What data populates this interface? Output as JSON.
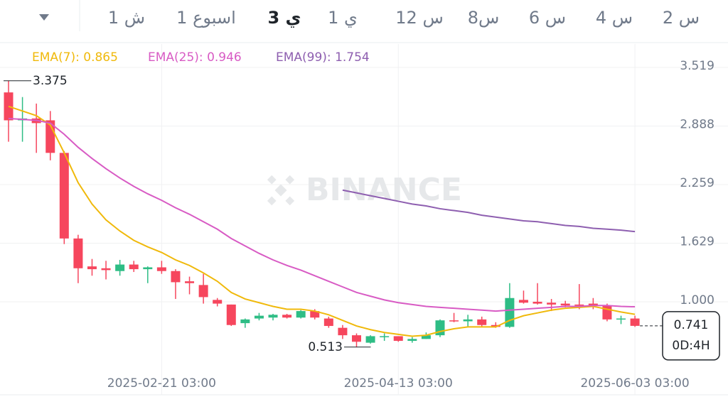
{
  "tabs": [
    "2 س",
    "4 س",
    "6 س",
    "8س",
    "12 س",
    "1 ي",
    "3 ي",
    "1 اسبوع",
    "1 ش"
  ],
  "selected_tab": 6,
  "chart_data": {
    "type": "candlestick",
    "watermark": "BINANCE",
    "categories": [
      null,
      null,
      null,
      null,
      null,
      null,
      null,
      null,
      null,
      null,
      null,
      "2025-02-21 03:00",
      null,
      null,
      null,
      null,
      null,
      null,
      null,
      null,
      null,
      null,
      null,
      null,
      null,
      null,
      null,
      null,
      "2025-04-13 03:00",
      null,
      null,
      null,
      null,
      null,
      null,
      null,
      null,
      null,
      null,
      null,
      null,
      null,
      null,
      null,
      null,
      "2025-06-03 03:00"
    ],
    "open": [
      3.25,
      2.95,
      2.97,
      2.95,
      2.6,
      1.68,
      1.38,
      1.36,
      1.33,
      1.4,
      1.35,
      1.37,
      1.33,
      1.22,
      1.18,
      1.02,
      0.97,
      0.77,
      0.82,
      0.83,
      0.86,
      0.83,
      0.9,
      0.82,
      0.72,
      0.64,
      0.56,
      0.62,
      0.63,
      0.58,
      0.6,
      0.64,
      0.8,
      0.79,
      0.81,
      0.75,
      0.73,
      1.02,
      1.0,
      0.99,
      0.98,
      0.97,
      0.98,
      0.96,
      0.81,
      0.82
    ],
    "high": [
      3.375,
      3.2,
      3.13,
      3.05,
      2.62,
      1.72,
      1.46,
      1.44,
      1.45,
      1.44,
      1.38,
      1.44,
      1.35,
      1.27,
      1.3,
      1.04,
      0.97,
      0.82,
      0.88,
      0.87,
      0.87,
      0.91,
      0.92,
      0.84,
      0.75,
      0.66,
      0.64,
      0.66,
      0.63,
      0.62,
      0.67,
      0.81,
      0.88,
      0.86,
      0.84,
      0.78,
      1.2,
      1.12,
      1.2,
      1.03,
      1.01,
      1.19,
      1.04,
      0.98,
      0.85,
      0.85
    ],
    "low": [
      2.72,
      2.72,
      2.6,
      2.52,
      1.62,
      1.2,
      1.28,
      1.24,
      1.28,
      1.32,
      1.2,
      1.3,
      1.03,
      1.08,
      0.98,
      0.95,
      0.74,
      0.72,
      0.8,
      0.8,
      0.82,
      0.82,
      0.81,
      0.72,
      0.6,
      0.513,
      0.55,
      0.58,
      0.57,
      0.56,
      0.6,
      0.62,
      0.78,
      0.73,
      0.73,
      0.72,
      0.72,
      0.98,
      0.97,
      0.9,
      0.94,
      0.92,
      0.92,
      0.79,
      0.76,
      0.73
    ],
    "close": [
      2.95,
      2.97,
      2.92,
      2.6,
      1.68,
      1.36,
      1.35,
      1.34,
      1.4,
      1.35,
      1.37,
      1.33,
      1.21,
      1.2,
      1.05,
      0.98,
      0.75,
      0.81,
      0.85,
      0.86,
      0.83,
      0.9,
      0.83,
      0.74,
      0.64,
      0.57,
      0.63,
      0.63,
      0.58,
      0.6,
      0.64,
      0.8,
      0.79,
      0.81,
      0.75,
      0.73,
      1.04,
      0.99,
      0.98,
      0.97,
      0.96,
      0.96,
      0.96,
      0.81,
      0.82,
      0.741
    ],
    "up_color": "#2ebd85",
    "down_color": "#f6465d",
    "series": [
      {
        "name": "EMA(7): 0.865",
        "color": "#f0b90b",
        "values": [
          3.1,
          3.05,
          3.0,
          2.9,
          2.6,
          2.28,
          2.05,
          1.88,
          1.76,
          1.66,
          1.59,
          1.53,
          1.45,
          1.39,
          1.31,
          1.22,
          1.1,
          1.03,
          0.99,
          0.95,
          0.92,
          0.92,
          0.9,
          0.86,
          0.8,
          0.74,
          0.7,
          0.67,
          0.65,
          0.63,
          0.64,
          0.68,
          0.71,
          0.73,
          0.73,
          0.73,
          0.8,
          0.85,
          0.88,
          0.91,
          0.93,
          0.94,
          0.95,
          0.92,
          0.89,
          0.865
        ]
      },
      {
        "name": "EMA(25): 0.946",
        "color": "#d85bc4",
        "values": [
          2.97,
          2.96,
          2.95,
          2.92,
          2.8,
          2.66,
          2.54,
          2.43,
          2.33,
          2.24,
          2.16,
          2.09,
          2.01,
          1.94,
          1.86,
          1.78,
          1.68,
          1.6,
          1.52,
          1.45,
          1.39,
          1.34,
          1.28,
          1.22,
          1.16,
          1.1,
          1.06,
          1.02,
          0.99,
          0.97,
          0.95,
          0.94,
          0.93,
          0.92,
          0.91,
          0.9,
          0.91,
          0.92,
          0.93,
          0.94,
          0.95,
          0.95,
          0.96,
          0.96,
          0.95,
          0.946
        ]
      },
      {
        "name": "EMA(99): 1.754",
        "color": "#8e5fb0",
        "values": [
          null,
          null,
          null,
          null,
          null,
          null,
          null,
          null,
          null,
          null,
          null,
          null,
          null,
          null,
          null,
          null,
          null,
          null,
          null,
          null,
          null,
          null,
          null,
          null,
          2.2,
          2.17,
          2.14,
          2.11,
          2.08,
          2.05,
          2.03,
          2.0,
          1.98,
          1.96,
          1.93,
          1.91,
          1.89,
          1.87,
          1.86,
          1.84,
          1.82,
          1.81,
          1.79,
          1.78,
          1.77,
          1.754
        ]
      }
    ],
    "ylim": [
      0.29,
      3.77
    ],
    "yticks": [
      3.519,
      2.888,
      2.259,
      1.629,
      {
        "value": 1.0,
        "label": "1.000"
      }
    ],
    "grid": true,
    "countdown": "0D:4H"
  }
}
